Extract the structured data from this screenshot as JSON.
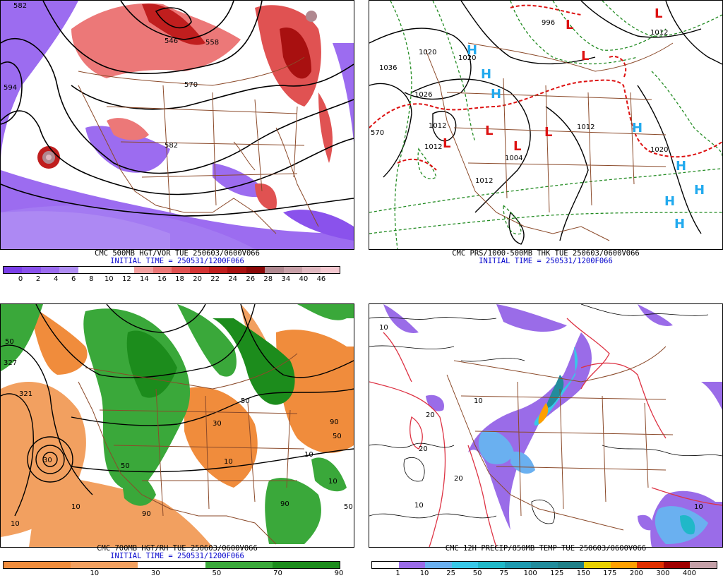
{
  "panels": [
    {
      "id": "vort",
      "title": "CMC 500MB HGT/VOR TUE 250603/0600V066",
      "init": "INITIAL TIME = 250531/1200F066",
      "contour_labels": [
        "582",
        "594",
        "546",
        "558",
        "570",
        "582"
      ],
      "scale_colors": [
        "#7a3ee8",
        "#8a52ec",
        "#9c6cf0",
        "#b08ef4",
        "#ffffff",
        "#ffffff",
        "#ffffff",
        "#f2a0a0",
        "#ec7878",
        "#e05252",
        "#d43434",
        "#c01e1e",
        "#a81010",
        "#8a0808",
        "#b08890",
        "#c8a0a8",
        "#e0b8c0",
        "#f4c8d0"
      ],
      "scale_ticks": [
        "0",
        "2",
        "4",
        "6",
        "8",
        "10",
        "12",
        "14",
        "16",
        "18",
        "20",
        "22",
        "24",
        "26",
        "28",
        "34",
        "40",
        "46"
      ]
    },
    {
      "id": "prs",
      "title": "CMC PRS/1000-500MB THK TUE 250603/0600V066",
      "init": "INITIAL TIME = 250531/1200F066",
      "contour_labels": [
        "1036",
        "1026",
        "1020",
        "1020",
        "1012",
        "1012",
        "1004",
        "1012",
        "1012",
        "1020",
        "1012",
        "570",
        "996"
      ],
      "highs": [
        "H",
        "H",
        "H",
        "H",
        "H",
        "H",
        "H",
        "H"
      ],
      "lows": [
        "L",
        "L",
        "L",
        "L",
        "L",
        "L",
        "L"
      ]
    },
    {
      "id": "rh",
      "title": "CMC 700MB HGT/RH TUE 250603/0600V066",
      "init": "INITIAL TIME = 250531/1200F066",
      "contour_labels": [
        "50",
        "327",
        "321",
        "30",
        "10",
        "10",
        "50",
        "90",
        "10",
        "50",
        "90",
        "10",
        "50",
        "10",
        "30",
        "90",
        "50"
      ],
      "scale_colors": [
        "#f08c3c",
        "#f08c3c",
        "#f2a060",
        "#f2a060",
        "#ffffff",
        "#ffffff",
        "#3aa83a",
        "#3aa83a",
        "#1c8c1c",
        "#1c8c1c"
      ],
      "scale_ticks": [
        "10",
        "30",
        "50",
        "70",
        "90"
      ]
    },
    {
      "id": "precip",
      "title": "CMC 12H PRECIP/850MB TEMP TUE 250603/0600V066",
      "init": "",
      "contour_labels": [
        "10",
        "20",
        "10",
        "20",
        "10",
        "20",
        "10"
      ],
      "scale_colors": [
        "#ffffff",
        "#9a6ce8",
        "#6ab0f0",
        "#38c8e8",
        "#20b8c8",
        "#1e9ab0",
        "#228c9c",
        "#208088",
        "#e8d000",
        "#ffa000",
        "#e03000",
        "#a00000",
        "#c4a0a8"
      ],
      "scale_ticks": [
        "1",
        "10",
        "25",
        "50",
        "75",
        "100",
        "125",
        "150",
        "175",
        "200",
        "300",
        "400"
      ]
    }
  ]
}
